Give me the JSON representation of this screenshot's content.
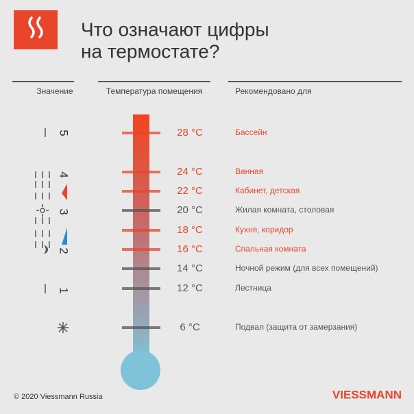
{
  "header": {
    "title": [
      "Что означают цифры",
      "на термостате?"
    ]
  },
  "columns": [
    "Значение",
    "Температура помещения",
    "Рекомендовано для"
  ],
  "dial": [
    "5",
    "4",
    "3",
    "2",
    "1"
  ],
  "rows": [
    {
      "temperature": "28 °C",
      "label": "Бассейн",
      "color": "#e8452c"
    },
    {
      "temperature": "24 °C",
      "label": "Ванная",
      "color": "#e8452c"
    },
    {
      "temperature": "22 °C",
      "label": "Кабинет, детская",
      "color": "#e8452c"
    },
    {
      "temperature": "20 °C",
      "label": "Жилая комната, столовая",
      "color": "#555555"
    },
    {
      "temperature": "18 °C",
      "label": "Кухня, коридор",
      "color": "#e8452c"
    },
    {
      "temperature": "16 °C",
      "label": "Спальная комната",
      "color": "#e8452c"
    },
    {
      "temperature": "14 °C",
      "label": "Ночной режим (для всех помещений)",
      "color": "#555555"
    },
    {
      "temperature": "12 °C",
      "label": "Лестница",
      "color": "#555555"
    },
    {
      "temperature": "6 °C",
      "label": "Подвал (защита от замерзания)",
      "color": "#555555"
    }
  ],
  "footer": {
    "copyright": "© 2020 Viessmann Russia",
    "logo": "VIESSMANN"
  }
}
